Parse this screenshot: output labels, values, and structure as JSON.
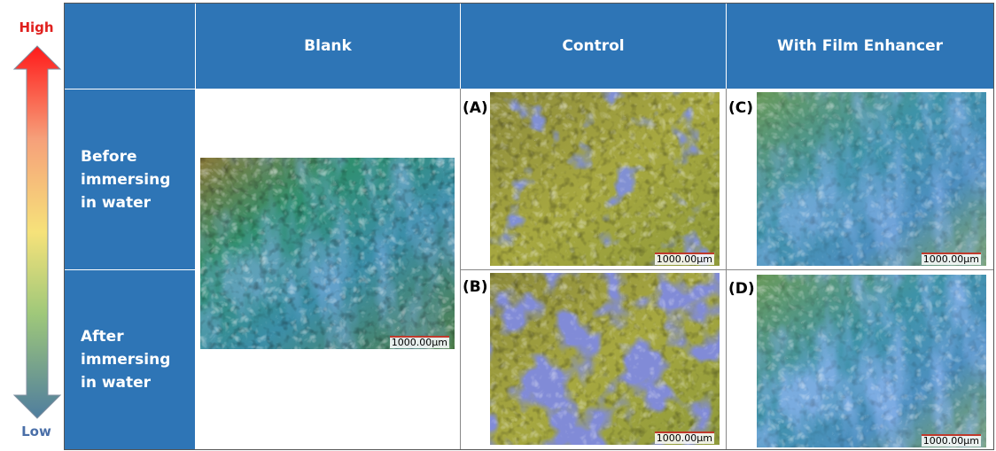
{
  "scale": {
    "high": "High",
    "low": "Low"
  },
  "table": {
    "headers": [
      "Blank",
      "Control",
      "With Film Enhancer"
    ],
    "rows": [
      "Before immersing in water",
      "After immersing in water"
    ]
  },
  "images": {
    "blank": {
      "scale_bar": "1000.00μm"
    },
    "a": {
      "label": "(A)",
      "scale_bar": "1000.00μm"
    },
    "b": {
      "label": "(B)",
      "scale_bar": "1000.00μm"
    },
    "c": {
      "label": "(C)",
      "scale_bar": "1000.00μm"
    },
    "d": {
      "label": "(D)",
      "scale_bar": "1000.00μm"
    }
  }
}
